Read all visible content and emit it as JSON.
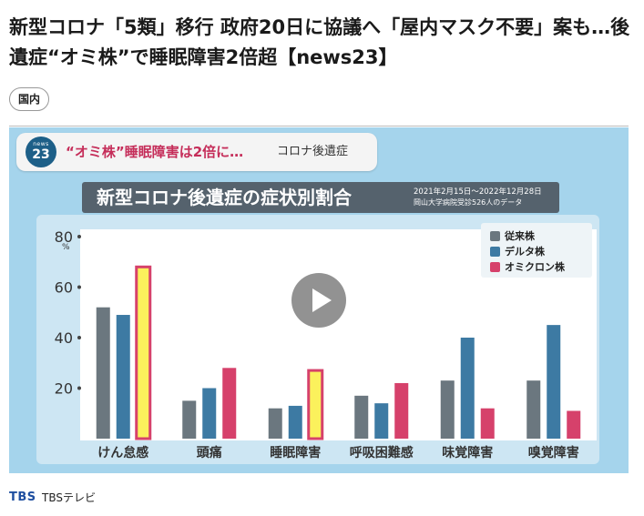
{
  "article": {
    "headline": "新型コロナ「5類」移行 政府20日に協議へ「屋内マスク不要」案も…後遺症“オミ株”で睡眠障害2倍超【news23】",
    "category_tag": "国内"
  },
  "video": {
    "banner_logo_small": "news",
    "banner_logo_number": "23",
    "banner_main": "“オミ株”睡眠障害は2倍に…",
    "banner_sub": "コロナ後遺症",
    "chart_title": "新型コロナ後遺症の症状別割合",
    "chart_date": "2021年2月15日〜2022年12月28日",
    "chart_source": "岡山大学病院受診526人のデータ",
    "play_icon": "play-icon"
  },
  "colors": {
    "conventional": "#6b777f",
    "delta": "#3d7aa3",
    "omicron": "#d6416b",
    "highlight_fill": "#fbf15c",
    "highlight_border": "#d6416b"
  },
  "chart_data": {
    "type": "bar",
    "categories": [
      "けん怠感",
      "頭痛",
      "睡眠障害",
      "呼吸困難感",
      "味覚障害",
      "嗅覚障害"
    ],
    "series": [
      {
        "name": "従来株",
        "values": [
          52,
          15,
          12,
          17,
          23,
          23
        ]
      },
      {
        "name": "デルタ株",
        "values": [
          49,
          20,
          13,
          14,
          40,
          45
        ]
      },
      {
        "name": "オミクロン株",
        "values": [
          68,
          28,
          27,
          22,
          12,
          11
        ]
      }
    ],
    "highlighted": [
      [
        0,
        2
      ],
      [
        2,
        2
      ]
    ],
    "yticks": [
      20,
      40,
      60,
      80
    ],
    "yunit": "%",
    "ylim": [
      0,
      80
    ],
    "legend_position": "top-right"
  },
  "footer": {
    "source_logo": "TBS",
    "source_name": "TBSテレビ"
  }
}
